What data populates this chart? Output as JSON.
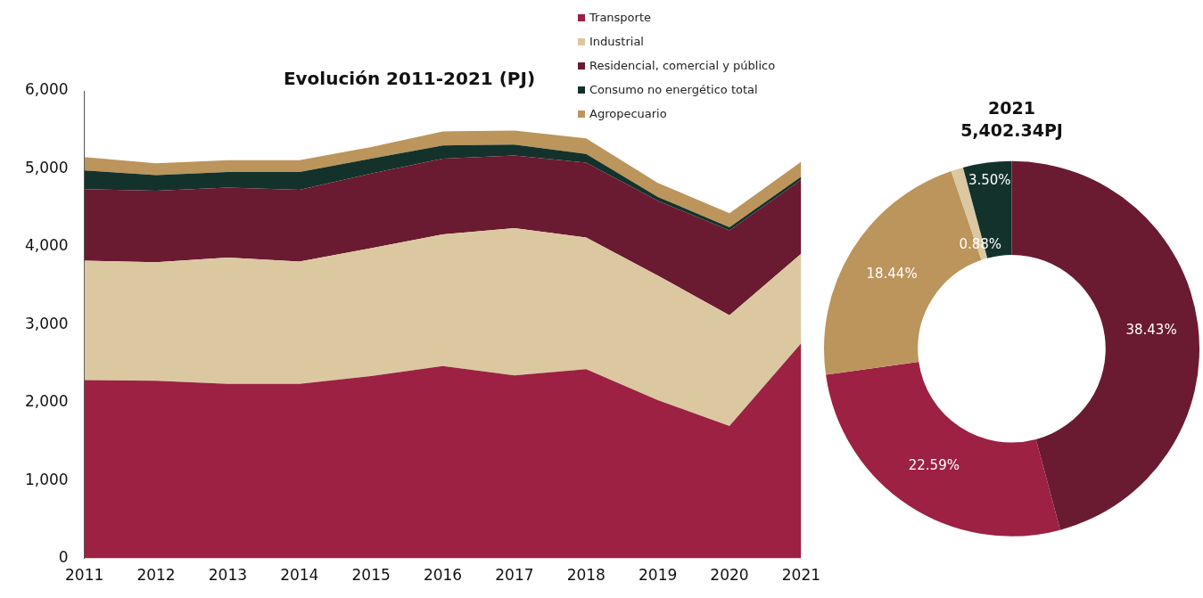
{
  "chart_data": [
    {
      "type": "area",
      "title": "Evolución 2011-2021 (PJ)",
      "stacked": true,
      "categories": [
        "2011",
        "2012",
        "2013",
        "2014",
        "2015",
        "2016",
        "2017",
        "2018",
        "2019",
        "2020",
        "2021"
      ],
      "series": [
        {
          "name": "Transporte",
          "color": "#9c2142",
          "values": [
            2290,
            2280,
            2240,
            2240,
            2340,
            2470,
            2350,
            2430,
            2030,
            1700,
            2760
          ]
        },
        {
          "name": "Industrial",
          "color": "#dbc8a0",
          "values": [
            1530,
            1520,
            1620,
            1570,
            1640,
            1690,
            1890,
            1690,
            1600,
            1420,
            1150
          ]
        },
        {
          "name": "Residencial, comercial y público",
          "color": "#6a1b31",
          "values": [
            920,
            920,
            900,
            920,
            960,
            970,
            930,
            960,
            960,
            1090,
            950
          ]
        },
        {
          "name": "Consumo no energético total",
          "color": "#13322b",
          "values": [
            240,
            200,
            200,
            230,
            190,
            170,
            140,
            110,
            50,
            40,
            40
          ]
        },
        {
          "name": "Agropecuario",
          "color": "#bc955c",
          "values": [
            170,
            150,
            150,
            150,
            150,
            180,
            180,
            200,
            180,
            180,
            190
          ]
        }
      ],
      "ylim": [
        0,
        6000
      ],
      "yticks": [
        0,
        {
          "value": 1000,
          "label": "1,000"
        },
        {
          "value": 2000,
          "label": "2,000"
        },
        {
          "value": 3000,
          "label": "3,000"
        },
        {
          "value": 4000,
          "label": "4,000"
        },
        {
          "value": 5000,
          "label": "5,000"
        },
        {
          "value": 6000,
          "label": "6,000"
        }
      ],
      "grid": false,
      "legend": "top right"
    },
    {
      "type": "donut",
      "title": "2021",
      "subtitle": "5,402.34PJ",
      "categories": [
        null,
        null,
        null,
        null,
        null
      ],
      "values": [
        38.43,
        22.59,
        18.44,
        0.88,
        3.5
      ],
      "colors": [
        "#6a1b31",
        "#9c2142",
        "#bc955c",
        "#dbc8a0",
        "#13322b"
      ],
      "value_labels": [
        "38.43%",
        "22.59%",
        "18.44%",
        "0.88%",
        "3.50%"
      ],
      "legend": false
    }
  ]
}
